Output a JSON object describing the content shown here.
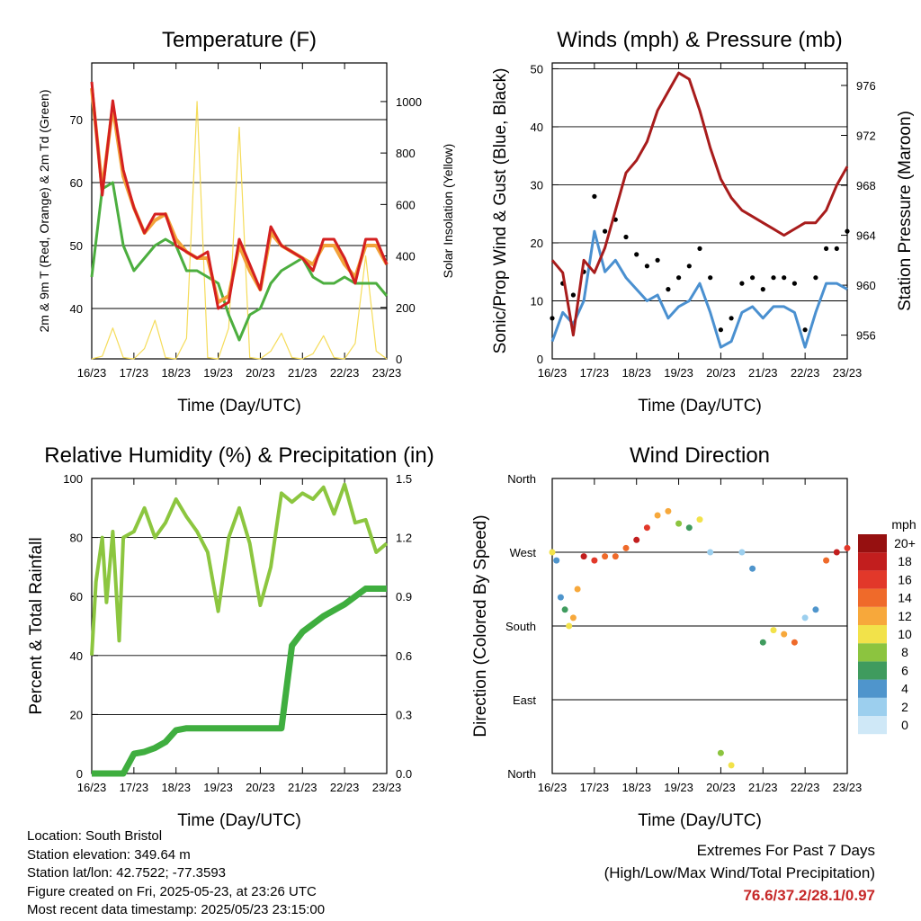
{
  "x_ticks": [
    "16/23",
    "17/23",
    "18/23",
    "19/23",
    "20/23",
    "21/23",
    "22/23",
    "23/23"
  ],
  "panels": {
    "temperature": {
      "title": "Temperature (F)",
      "xlabel": "Time (Day/UTC)",
      "ylabel_left": "2m & 9m T (Red, Orange) & 2m Td (Green)",
      "ylabel_right": "Solar Insolation (Yellow)",
      "left_ticks": [
        "40",
        "50",
        "60",
        "70"
      ],
      "right_ticks": [
        "0",
        "200",
        "400",
        "600",
        "800",
        "1000"
      ]
    },
    "winds": {
      "title": "Winds (mph) & Pressure (mb)",
      "xlabel": "Time (Day/UTC)",
      "ylabel_left": "Sonic/Prop Wind & Gust (Blue, Black)",
      "ylabel_right": "Station Pressure (Maroon)",
      "left_ticks": [
        "0",
        "10",
        "20",
        "30",
        "40",
        "50"
      ],
      "right_ticks": [
        "956",
        "960",
        "964",
        "968",
        "972",
        "976"
      ]
    },
    "humidity": {
      "title": "Relative Humidity (%) & Precipitation (in)",
      "xlabel": "Time (Day/UTC)",
      "ylabel_left": "Percent & Total Rainfall",
      "left_ticks": [
        "0",
        "20",
        "40",
        "60",
        "80",
        "100"
      ],
      "right_ticks": [
        "0.0",
        "0.3",
        "0.6",
        "0.9",
        "1.2",
        "1.5"
      ]
    },
    "direction": {
      "title": "Wind Direction",
      "xlabel": "Time (Day/UTC)",
      "ylabel_left": "Direction (Colored By Speed)",
      "dir_ticks": [
        "North",
        "East",
        "South",
        "West",
        "North"
      ],
      "legend_title": "mph",
      "legend_labels": [
        "0",
        "2",
        "4",
        "6",
        "8",
        "10",
        "12",
        "14",
        "16",
        "18",
        "20+"
      ],
      "legend_colors": [
        "#cfe8f7",
        "#9ccfee",
        "#4f95cc",
        "#3f9b5e",
        "#8cc43f",
        "#f2e24a",
        "#f7a83b",
        "#ef6a2a",
        "#e2382a",
        "#c21e1e",
        "#961010"
      ]
    }
  },
  "info": {
    "location": "Location: South Bristol",
    "elevation": "Station elevation: 349.64 m",
    "latlon": "Station lat/lon: 42.7522; -77.3593",
    "created": "Figure created on Fri, 2025-05-23, at 23:26 UTC",
    "recent": "Most recent data timestamp: 2025/05/23 23:15:00"
  },
  "extremes": {
    "line1": "Extremes For Past 7 Days",
    "line2": "(High/Low/Max Wind/Total Precipitation)",
    "values": "76.6/37.2/28.1/0.97"
  },
  "chart_data": [
    {
      "type": "line",
      "title": "Temperature (F)",
      "x_days": [
        16,
        16.25,
        16.5,
        16.75,
        17,
        17.25,
        17.5,
        17.75,
        18,
        18.25,
        18.5,
        18.75,
        19,
        19.25,
        19.5,
        19.75,
        20,
        20.25,
        20.5,
        20.75,
        21,
        21.25,
        21.5,
        21.75,
        22,
        22.25,
        22.5,
        22.75,
        23
      ],
      "series": [
        {
          "name": "2m T",
          "color": "#d42020",
          "values": [
            76,
            58,
            73,
            62,
            56,
            52,
            55,
            55,
            50,
            49,
            48,
            49,
            40,
            41,
            51,
            47,
            43,
            53,
            50,
            49,
            48,
            46,
            51,
            51,
            48,
            44,
            51,
            51,
            47
          ]
        },
        {
          "name": "9m T",
          "color": "#f2a33a",
          "values": [
            75,
            59,
            72,
            61,
            56,
            52,
            54,
            55,
            51,
            49,
            48,
            48,
            41,
            42,
            50,
            46,
            43,
            52,
            50,
            49,
            48,
            47,
            50,
            50,
            47,
            45,
            50,
            50,
            47
          ]
        },
        {
          "name": "2m Td",
          "color": "#4cae3f",
          "values": [
            45,
            59,
            60,
            50,
            46,
            48,
            50,
            51,
            50,
            46,
            46,
            45,
            44,
            39,
            35,
            39,
            40,
            44,
            46,
            47,
            48,
            45,
            44,
            44,
            45,
            44,
            44,
            44,
            42
          ]
        },
        {
          "name": "Solar",
          "color": "#f5dc5a",
          "values": [
            0,
            10,
            120,
            5,
            0,
            40,
            150,
            5,
            0,
            80,
            1000,
            5,
            0,
            120,
            900,
            5,
            0,
            30,
            100,
            5,
            0,
            20,
            90,
            5,
            0,
            60,
            400,
            30,
            0
          ]
        }
      ],
      "ylim": [
        32,
        79
      ],
      "ylim_right": [
        0,
        1150
      ]
    },
    {
      "type": "line",
      "title": "Winds (mph) & Pressure (mb)",
      "x_days": [
        16,
        16.25,
        16.5,
        16.75,
        17,
        17.25,
        17.5,
        17.75,
        18,
        18.25,
        18.5,
        18.75,
        19,
        19.25,
        19.5,
        19.75,
        20,
        20.25,
        20.5,
        20.75,
        21,
        21.25,
        21.5,
        21.75,
        22,
        22.25,
        22.5,
        22.75,
        23
      ],
      "series": [
        {
          "name": "Wind",
          "color": "#4a90d0",
          "values": [
            3,
            8,
            6,
            10,
            22,
            15,
            17,
            14,
            12,
            10,
            11,
            7,
            9,
            10,
            13,
            8,
            2,
            3,
            8,
            9,
            7,
            9,
            9,
            8,
            2,
            8,
            13,
            13,
            12
          ]
        },
        {
          "name": "Gust",
          "color": "#000000",
          "values": [
            7,
            13,
            11,
            15,
            28,
            22,
            24,
            21,
            18,
            16,
            17,
            12,
            14,
            16,
            19,
            14,
            5,
            7,
            13,
            14,
            12,
            14,
            14,
            13,
            5,
            14,
            19,
            19,
            22
          ]
        },
        {
          "name": "Pressure",
          "color": "#a81c1c",
          "values": [
            962,
            961,
            956,
            962,
            961,
            963,
            966,
            969,
            970,
            971.5,
            974,
            975.5,
            977,
            976.5,
            974,
            971,
            968.5,
            967,
            966,
            965.5,
            965,
            964.5,
            964,
            964.5,
            965,
            965,
            966,
            968,
            969.5
          ]
        }
      ],
      "ylim": [
        0,
        51
      ],
      "ylim_right": [
        954.1,
        977.8
      ]
    },
    {
      "type": "line",
      "title": "Relative Humidity (%) & Precipitation (in)",
      "x_days": [
        16,
        16.1,
        16.25,
        16.35,
        16.5,
        16.65,
        16.75,
        17,
        17.25,
        17.5,
        17.75,
        18,
        18.25,
        18.5,
        18.75,
        19,
        19.25,
        19.5,
        19.75,
        20,
        20.25,
        20.5,
        20.75,
        21,
        21.25,
        21.5,
        21.75,
        22,
        22.25,
        22.5,
        22.75,
        23
      ],
      "series": [
        {
          "name": "RH",
          "color": "#8cc63f",
          "values": [
            40,
            65,
            80,
            58,
            82,
            45,
            80,
            82,
            90,
            80,
            85,
            93,
            87,
            82,
            75,
            55,
            80,
            90,
            78,
            57,
            70,
            95,
            92,
            95,
            93,
            97,
            88,
            98,
            85,
            86,
            75,
            78
          ]
        },
        {
          "name": "Precip",
          "color": "#3fae3f",
          "values": [
            0,
            0,
            0,
            0,
            0,
            0,
            0,
            0.1,
            0.11,
            0.13,
            0.16,
            0.22,
            0.23,
            0.23,
            0.23,
            0.23,
            0.23,
            0.23,
            0.23,
            0.23,
            0.23,
            0.23,
            0.65,
            0.72,
            0.76,
            0.8,
            0.83,
            0.86,
            0.9,
            0.94,
            0.94,
            0.94
          ]
        }
      ],
      "ylim": [
        0,
        100
      ],
      "ylim_right": [
        0,
        1.5
      ]
    },
    {
      "type": "scatter",
      "title": "Wind Direction",
      "x_days": [
        16,
        16.1,
        16.2,
        16.3,
        16.4,
        16.5,
        16.6,
        16.75,
        17,
        17.25,
        17.5,
        17.75,
        18,
        18.25,
        18.5,
        18.75,
        19,
        19.25,
        19.5,
        19.75,
        20,
        20.25,
        20.5,
        20.75,
        21,
        21.25,
        21.5,
        21.75,
        22,
        22.25,
        22.5,
        22.75,
        23
      ],
      "series": [
        {
          "name": "Direction",
          "values": [
            270,
            260,
            215,
            200,
            180,
            190,
            225,
            265,
            260,
            265,
            265,
            275,
            285,
            300,
            315,
            320,
            305,
            300,
            310,
            270,
            25,
            10,
            270,
            250,
            160,
            175,
            170,
            160,
            190,
            200,
            260,
            270,
            275
          ]
        },
        {
          "name": "Speed",
          "values": [
            10,
            4,
            3,
            5,
            10,
            12,
            12,
            18,
            16,
            14,
            14,
            14,
            18,
            16,
            12,
            12,
            8,
            6,
            10,
            2,
            8,
            10,
            2,
            4,
            6,
            10,
            12,
            14,
            2,
            4,
            14,
            18,
            16
          ]
        }
      ],
      "ylim": [
        0,
        360
      ]
    }
  ]
}
